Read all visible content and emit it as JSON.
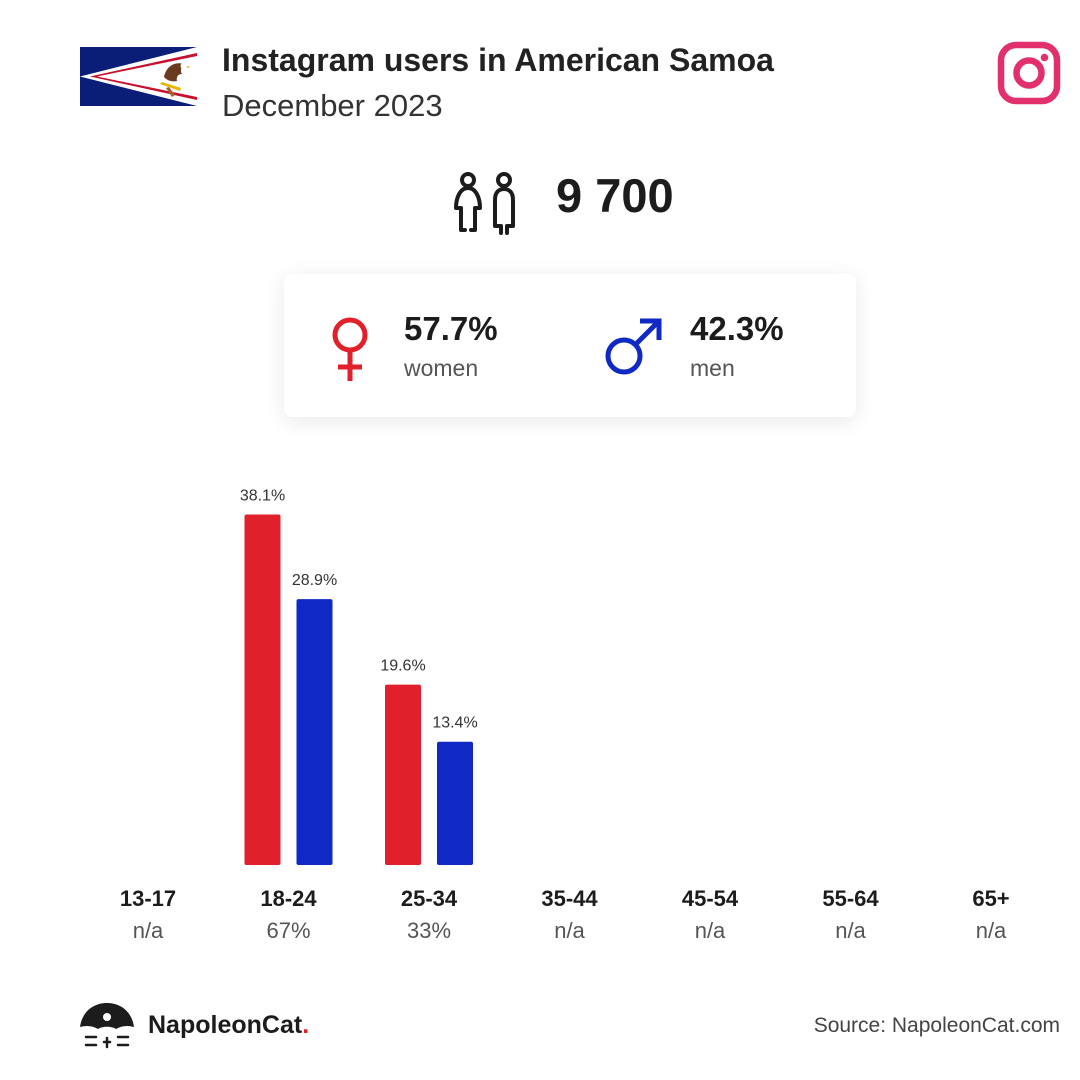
{
  "header": {
    "title": "Instagram users in American Samoa",
    "subtitle": "December 2023"
  },
  "icons": {
    "flag": "american-samoa-flag-icon",
    "platform": "instagram-icon",
    "users": "users-icon",
    "female": "female-symbol-icon",
    "male": "male-symbol-icon",
    "logo": "napoleoncat-logo-icon"
  },
  "total": {
    "value": "9 700"
  },
  "gender": {
    "women": {
      "pct": "57.7%",
      "label": "women"
    },
    "men": {
      "pct": "42.3%",
      "label": "men"
    }
  },
  "colors": {
    "women": "#e0202a",
    "men": "#1129c4",
    "instagram": "#e1306c"
  },
  "chart_data": {
    "type": "bar",
    "categories": [
      "13-17",
      "18-24",
      "25-34",
      "35-44",
      "45-54",
      "55-64",
      "65+"
    ],
    "category_totals": [
      "n/a",
      "67%",
      "33%",
      "n/a",
      "n/a",
      "n/a",
      "n/a"
    ],
    "series": [
      {
        "values": [
          null,
          38.1,
          19.6,
          null,
          null,
          null,
          null
        ],
        "labels": [
          "",
          "38.1%",
          "19.6%",
          "",
          "",
          "",
          ""
        ],
        "color": "#e0202a"
      },
      {
        "values": [
          null,
          28.9,
          13.4,
          null,
          null,
          null,
          null
        ],
        "labels": [
          "",
          "28.9%",
          "13.4%",
          "",
          "",
          "",
          ""
        ],
        "color": "#1129c4"
      }
    ],
    "grid": false
  },
  "footer": {
    "brand": "NapoleonCat",
    "brand_dot": ".",
    "source": "Source: NapoleonCat.com"
  }
}
